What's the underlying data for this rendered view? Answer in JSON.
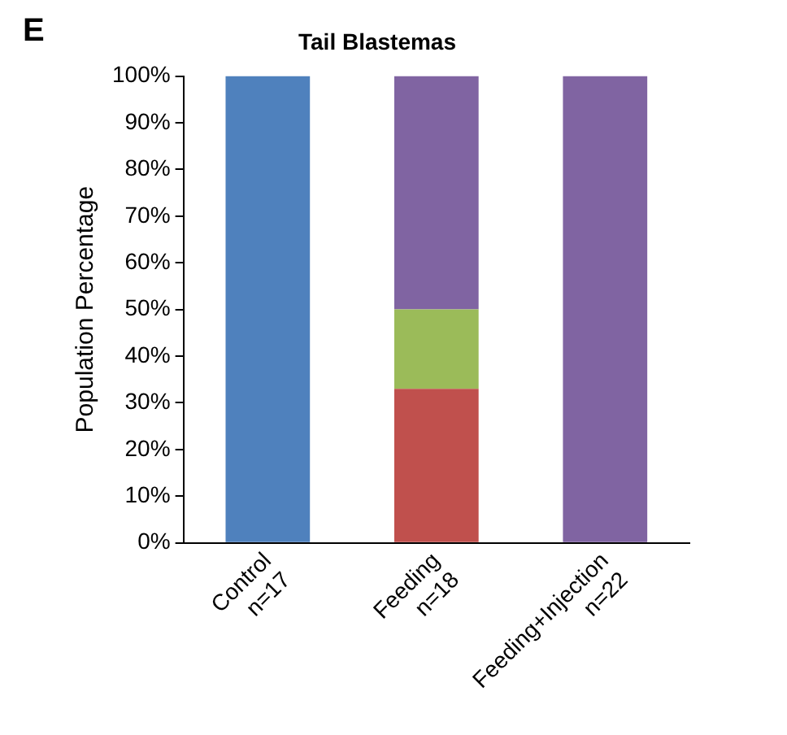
{
  "chart_data": {
    "type": "bar",
    "title": "Tail Blastemas",
    "ylabel": "Population Percentage",
    "annotations": [
      "E"
    ],
    "categories": [
      "Control\nn=17",
      "Feeding\nn=18",
      "Feeding+Injection\nn=22"
    ],
    "stacked": true,
    "series": [
      {
        "color": "#4f81bd",
        "values": [
          100,
          0,
          0
        ]
      },
      {
        "color": "#c0504d",
        "values": [
          0,
          33,
          0
        ]
      },
      {
        "color": "#9bbb59",
        "values": [
          0,
          17,
          0
        ]
      },
      {
        "color": "#8064a2",
        "values": [
          0,
          50,
          100
        ]
      }
    ],
    "ylim": [
      0,
      100
    ],
    "yticks": [
      {
        "value": 0,
        "label": "0%"
      },
      {
        "value": 10,
        "label": "10%"
      },
      {
        "value": 20,
        "label": "20%"
      },
      {
        "value": 30,
        "label": "30%"
      },
      {
        "value": 40,
        "label": "40%"
      },
      {
        "value": 50,
        "label": "50%"
      },
      {
        "value": 60,
        "label": "60%"
      },
      {
        "value": 70,
        "label": "70%"
      },
      {
        "value": 80,
        "label": "80%"
      },
      {
        "value": 90,
        "label": "90%"
      },
      {
        "value": 100,
        "label": "100%"
      }
    ],
    "grid": false,
    "legend": false
  }
}
